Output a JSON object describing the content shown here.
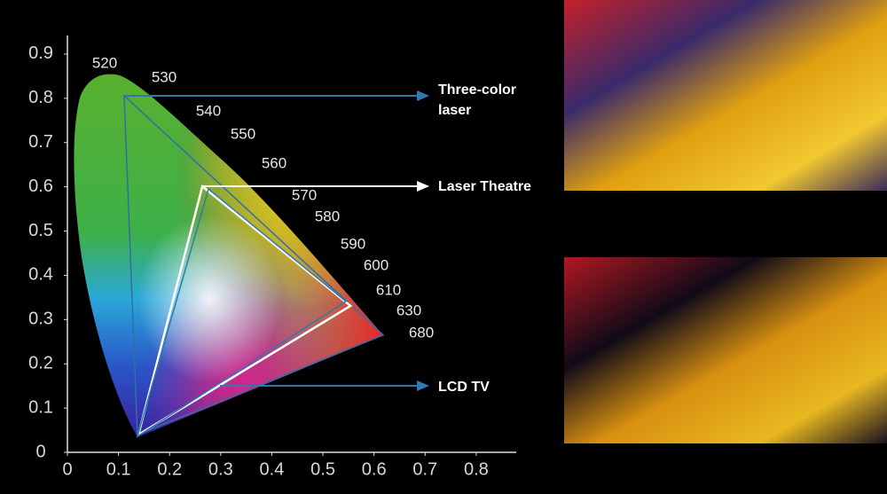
{
  "chart_data": {
    "type": "gamut",
    "xlim": [
      0,
      0.88
    ],
    "ylim": [
      0,
      0.94
    ],
    "xticks": [
      0,
      0.1,
      0.2,
      0.3,
      0.4,
      0.5,
      0.6,
      0.7,
      0.8
    ],
    "yticks": [
      0,
      0.1,
      0.2,
      0.3,
      0.4,
      0.5,
      0.6,
      0.7,
      0.8,
      0.9
    ],
    "wavelengths": [
      520,
      530,
      540,
      550,
      560,
      570,
      580,
      590,
      600,
      610,
      630,
      680
    ],
    "series": [
      {
        "name": "Three-color laser",
        "color": "#2f6fa6",
        "x": [
          0.111,
          0.618,
          0.137
        ],
        "y": [
          0.806,
          0.265,
          0.04
        ]
      },
      {
        "name": "Laser Theatre",
        "color": "#ffffff",
        "x": [
          0.264,
          0.554,
          0.139
        ],
        "y": [
          0.601,
          0.331,
          0.04
        ]
      },
      {
        "name": "LCD TV",
        "color": "#2f78b0",
        "x": [
          0.276,
          0.545,
          0.137
        ],
        "y": [
          0.595,
          0.341,
          0.036
        ]
      }
    ]
  }
}
